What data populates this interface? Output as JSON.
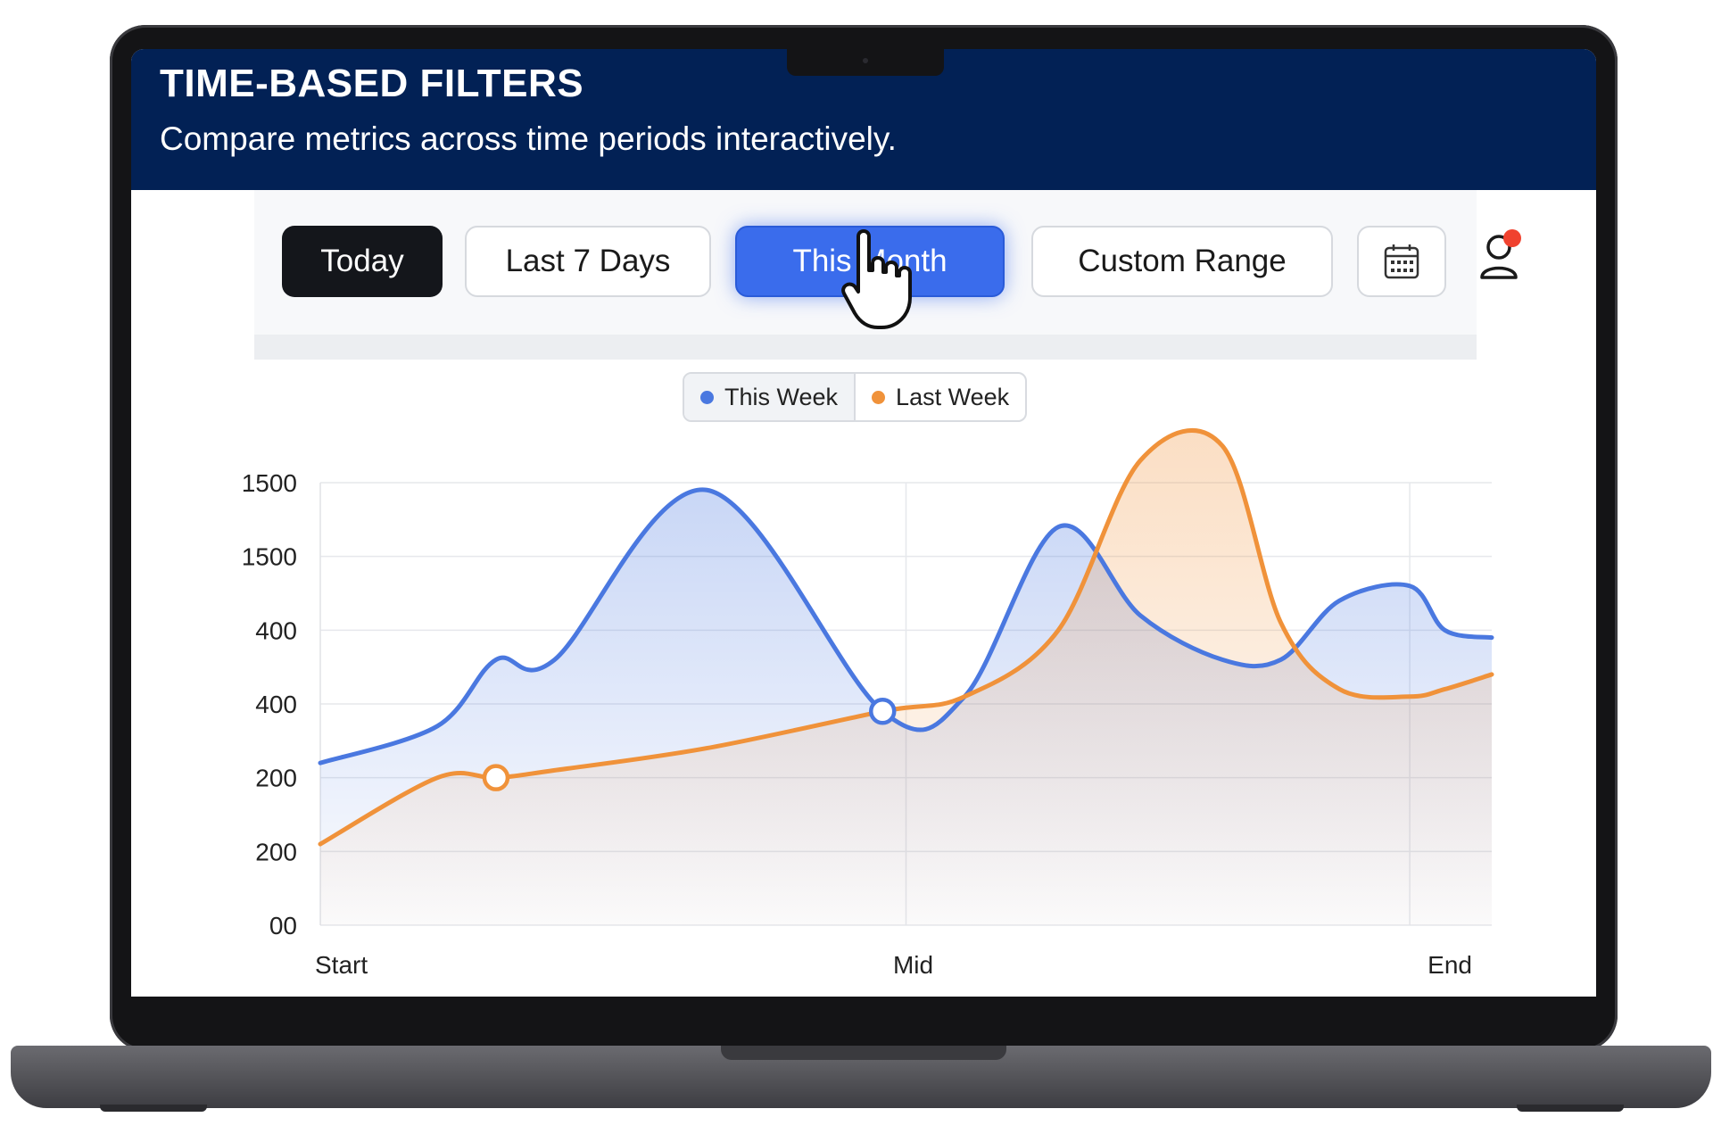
{
  "header": {
    "title": "TIME-BASED FILTERS",
    "subtitle": "Compare metrics across time periods interactively."
  },
  "filters": {
    "today": "Today",
    "last7": "Last 7 Days",
    "this_month": "This Month",
    "custom": "Custom Range",
    "selected": "This Month"
  },
  "icons": {
    "calendar": "calendar-icon",
    "user": "user-icon",
    "cursor": "hand-pointer-icon"
  },
  "colors": {
    "header_bg": "#022155",
    "accent": "#3a6cec",
    "this_week": "#4a78e0",
    "last_week": "#f0923a",
    "notification": "#f0422f"
  },
  "legend": {
    "this_week": "This Week",
    "last_week": "Last Week"
  },
  "chart_data": {
    "type": "area",
    "y_tick_labels": [
      "1500",
      "1500",
      "400",
      "400",
      "200",
      "200",
      "00"
    ],
    "x_tick_labels": [
      "Start",
      "Mid",
      "End"
    ],
    "x": [
      0,
      0.1,
      0.15,
      0.2,
      0.33,
      0.48,
      0.55,
      0.63,
      0.7,
      0.77,
      0.82,
      0.87,
      0.93,
      0.96,
      1.0
    ],
    "series": [
      {
        "name": "This Week",
        "values": [
          2.2,
          2.7,
          3.6,
          3.6,
          5.9,
          2.9,
          3.1,
          5.4,
          4.2,
          3.6,
          3.6,
          4.4,
          4.6,
          4.0,
          3.9
        ],
        "marker_index": 5
      },
      {
        "name": "Last Week",
        "values": [
          1.1,
          2.0,
          2.0,
          2.1,
          2.4,
          2.9,
          3.1,
          4.0,
          6.3,
          6.5,
          4.1,
          3.2,
          3.1,
          3.2,
          3.4
        ],
        "marker_index": 2
      }
    ],
    "ylim": [
      0,
      6
    ]
  }
}
